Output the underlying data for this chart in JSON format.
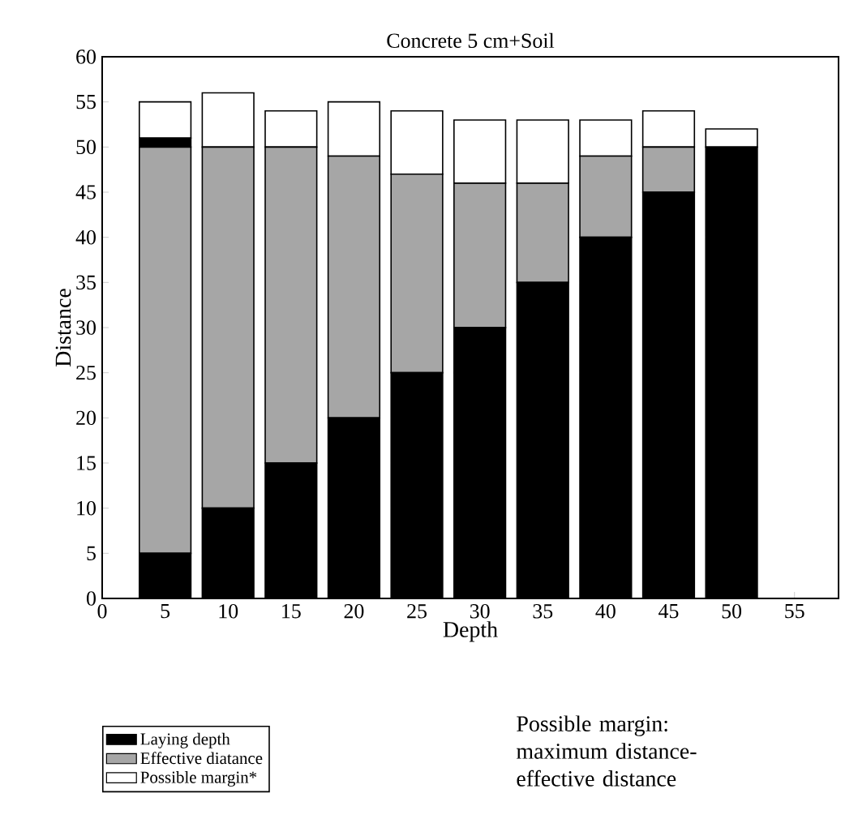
{
  "chart_data": {
    "type": "bar",
    "stacked": true,
    "title": "Concrete 5 cm+Soil",
    "xlabel": "Depth",
    "ylabel": "Distance",
    "x": [
      5,
      10,
      15,
      20,
      25,
      30,
      35,
      40,
      45,
      50
    ],
    "series": [
      {
        "name": "Laying depth",
        "color": "#000000",
        "values": [
          5,
          10,
          15,
          20,
          25,
          30,
          35,
          40,
          45,
          50
        ]
      },
      {
        "name": "Effective diatance",
        "color": "#a6a6a6",
        "values": [
          45,
          40,
          35,
          29,
          22,
          16,
          11,
          9,
          5,
          0
        ]
      },
      {
        "color": "#000000",
        "values": [
          1,
          0,
          0,
          0,
          0,
          0,
          0,
          0,
          0,
          0
        ]
      },
      {
        "name": "Possible margin*",
        "color": "#ffffff",
        "values": [
          4,
          6,
          4,
          6,
          7,
          7,
          7,
          4,
          4,
          2
        ]
      }
    ],
    "xlim": [
      0,
      58.5
    ],
    "xticks": [
      0,
      5,
      10,
      15,
      20,
      25,
      30,
      35,
      40,
      45,
      50,
      55
    ],
    "ylim": [
      0,
      60
    ],
    "yticks": [
      0,
      5,
      10,
      15,
      20,
      25,
      30,
      35,
      40,
      45,
      50,
      55,
      60
    ],
    "grid": false,
    "legend": "bottom left",
    "annotations": [
      "Possible margin: maximum distance-effective distance"
    ]
  }
}
